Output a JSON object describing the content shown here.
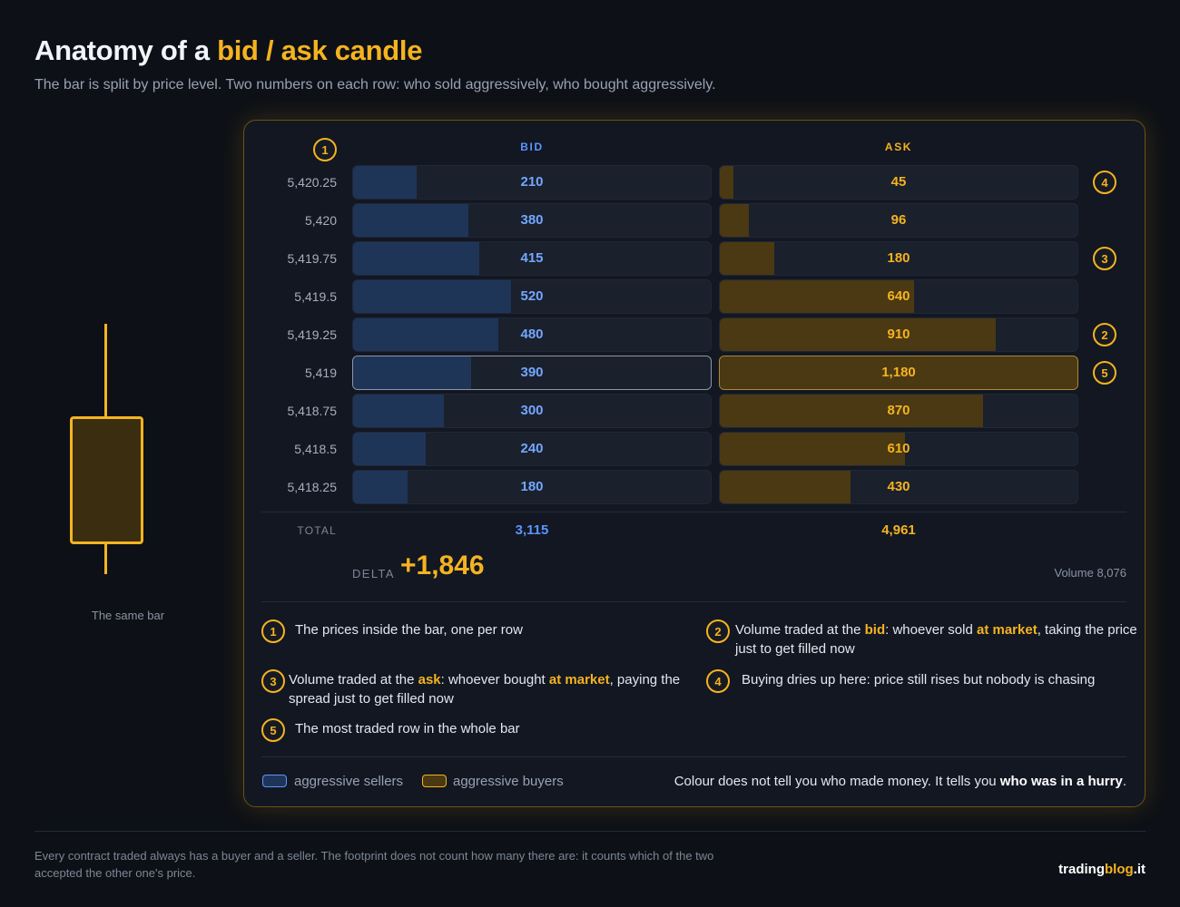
{
  "title": {
    "prefix": "Anatomy of a ",
    "accent": "bid / ask candle"
  },
  "subtitle": "The bar is split by price level. Two numbers on each row: who sold aggressively, who bought aggressively.",
  "candle": {
    "caption": "The same bar"
  },
  "columns": {
    "bid": "BID",
    "ask": "ASK"
  },
  "max_volume": 1180,
  "rows": [
    {
      "price": "5,420.25",
      "bid": 210,
      "ask": 45,
      "bid_label": "210",
      "ask_label": "45",
      "badge": "4"
    },
    {
      "price": "5,420",
      "bid": 380,
      "ask": 96,
      "bid_label": "380",
      "ask_label": "96",
      "badge": ""
    },
    {
      "price": "5,419.75",
      "bid": 415,
      "ask": 180,
      "bid_label": "415",
      "ask_label": "180",
      "badge": "3"
    },
    {
      "price": "5,419.5",
      "bid": 520,
      "ask": 640,
      "bid_label": "520",
      "ask_label": "640",
      "badge": ""
    },
    {
      "price": "5,419.25",
      "bid": 480,
      "ask": 910,
      "bid_label": "480",
      "ask_label": "910",
      "badge": "2"
    },
    {
      "price": "5,419",
      "bid": 390,
      "ask": 1180,
      "bid_label": "390",
      "ask_label": "1,180",
      "badge": "5",
      "highlight": true
    },
    {
      "price": "5,418.75",
      "bid": 300,
      "ask": 870,
      "bid_label": "300",
      "ask_label": "870",
      "badge": ""
    },
    {
      "price": "5,418.5",
      "bid": 240,
      "ask": 610,
      "bid_label": "240",
      "ask_label": "610",
      "badge": ""
    },
    {
      "price": "5,418.25",
      "bid": 180,
      "ask": 430,
      "bid_label": "180",
      "ask_label": "430",
      "badge": ""
    }
  ],
  "price_badge": "1",
  "totals": {
    "label": "TOTAL",
    "bid": "3,115",
    "ask": "4,961"
  },
  "delta": {
    "label": "DELTA",
    "value": "+1,846"
  },
  "volume": "Volume 8,076",
  "notes": [
    {
      "num": "1",
      "parts": [
        {
          "t": "The prices inside the bar, one per row"
        }
      ]
    },
    {
      "num": "2",
      "parts": [
        {
          "t": "Volume traded at the "
        },
        {
          "t": "bid",
          "hl": true
        },
        {
          "t": ": whoever sold "
        },
        {
          "t": "at market",
          "hl": true
        },
        {
          "t": ", taking the price just to get filled now"
        }
      ]
    },
    {
      "num": "3",
      "parts": [
        {
          "t": "Volume traded at the "
        },
        {
          "t": "ask",
          "hl": true
        },
        {
          "t": ": whoever bought "
        },
        {
          "t": "at market",
          "hl": true
        },
        {
          "t": ", paying the spread just to get filled now"
        }
      ]
    },
    {
      "num": "4",
      "parts": [
        {
          "t": "Buying dries up here: price still rises but nobody is chasing"
        }
      ]
    },
    {
      "num": "5",
      "parts": [
        {
          "t": "The most traded row in the whole bar"
        }
      ]
    }
  ],
  "legend": {
    "sellers": "aggressive sellers",
    "buyers": "aggressive buyers"
  },
  "tagline": {
    "text": "Colour does not tell you who made money. It tells you ",
    "bold": "who was in a hurry",
    "end": "."
  },
  "footnote": "Every contract traded always has a buyer and a seller. The footprint does not count how many there are: it counts which of the two accepted the other one's price.",
  "brand": {
    "main": "trading",
    "accent": "blog",
    "tld": ".it"
  },
  "colors": {
    "bid": "#5b95ff",
    "ask": "#f5b320",
    "bid_fill": "#1f3558",
    "ask_fill": "#4a3912"
  }
}
